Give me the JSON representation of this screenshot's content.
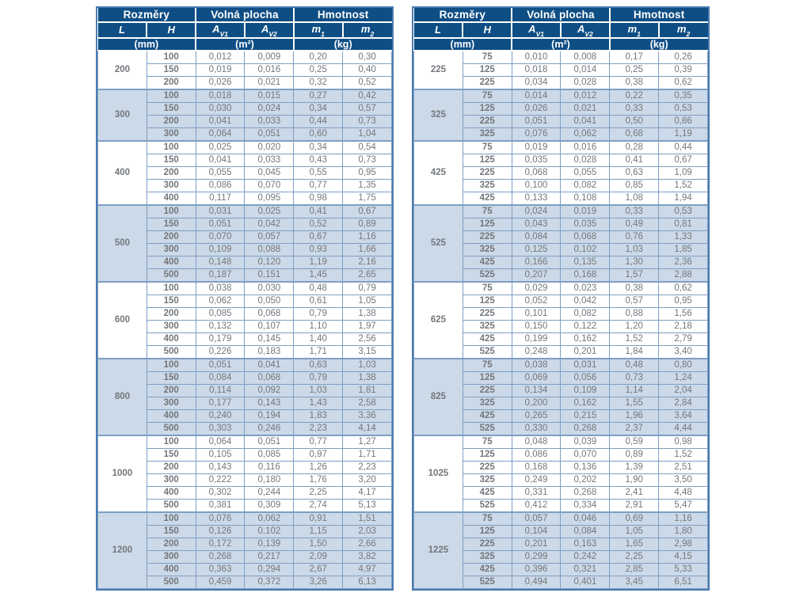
{
  "theme": {
    "header-bg": "#0f4e85",
    "stripe": "#ccd9e8",
    "line": "#7d9fc3",
    "border-strong": "#4a7ab0",
    "text-num": "#73777b",
    "text-bold": "#3c3f43",
    "page-bg": "#ffffff"
  },
  "header": {
    "groups": [
      {
        "label": "Rozměry",
        "span": 2
      },
      {
        "label": "Volná plocha",
        "span": 2
      },
      {
        "label": "Hmotnost",
        "span": 2
      }
    ],
    "columns": [
      {
        "base": "L"
      },
      {
        "base": "H"
      },
      {
        "base": "A",
        "sub": "V1"
      },
      {
        "base": "A",
        "sub": "V2"
      },
      {
        "base": "m",
        "sub": "1"
      },
      {
        "base": "m",
        "sub": "2"
      }
    ],
    "units": [
      {
        "label": "(mm)",
        "span": 2
      },
      {
        "label": "(m²)",
        "span": 2
      },
      {
        "label": "(kg)",
        "span": 2
      }
    ]
  },
  "tables": [
    {
      "name": "dimensions-table-left",
      "groups": [
        {
          "l": "200",
          "rows": [
            [
              "100",
              "0,012",
              "0,009",
              "0,20",
              "0,30"
            ],
            [
              "150",
              "0,019",
              "0,016",
              "0,25",
              "0,40"
            ],
            [
              "200",
              "0,026",
              "0,021",
              "0,32",
              "0,52"
            ]
          ]
        },
        {
          "l": "300",
          "rows": [
            [
              "100",
              "0,018",
              "0,015",
              "0,27",
              "0,42"
            ],
            [
              "150",
              "0,030",
              "0,024",
              "0,34",
              "0,57"
            ],
            [
              "200",
              "0,041",
              "0,033",
              "0,44",
              "0,73"
            ],
            [
              "300",
              "0,064",
              "0,051",
              "0,60",
              "1,04"
            ]
          ]
        },
        {
          "l": "400",
          "rows": [
            [
              "100",
              "0,025",
              "0,020",
              "0,34",
              "0,54"
            ],
            [
              "150",
              "0,041",
              "0,033",
              "0,43",
              "0,73"
            ],
            [
              "200",
              "0,055",
              "0,045",
              "0,55",
              "0,95"
            ],
            [
              "300",
              "0,086",
              "0,070",
              "0,77",
              "1,35"
            ],
            [
              "400",
              "0,117",
              "0,095",
              "0,98",
              "1,75"
            ]
          ]
        },
        {
          "l": "500",
          "rows": [
            [
              "100",
              "0,031",
              "0,025",
              "0,41",
              "0,67"
            ],
            [
              "150",
              "0,051",
              "0,042",
              "0,52",
              "0,89"
            ],
            [
              "200",
              "0,070",
              "0,057",
              "0,67",
              "1,16"
            ],
            [
              "300",
              "0,109",
              "0,088",
              "0,93",
              "1,66"
            ],
            [
              "400",
              "0,148",
              "0,120",
              "1,19",
              "2,16"
            ],
            [
              "500",
              "0,187",
              "0,151",
              "1,45",
              "2,65"
            ]
          ]
        },
        {
          "l": "600",
          "rows": [
            [
              "100",
              "0,038",
              "0,030",
              "0,48",
              "0,79"
            ],
            [
              "150",
              "0,062",
              "0,050",
              "0,61",
              "1,05"
            ],
            [
              "200",
              "0,085",
              "0,068",
              "0,79",
              "1,38"
            ],
            [
              "300",
              "0,132",
              "0,107",
              "1,10",
              "1,97"
            ],
            [
              "400",
              "0,179",
              "0,145",
              "1,40",
              "2,56"
            ],
            [
              "500",
              "0,226",
              "0,183",
              "1,71",
              "3,15"
            ]
          ]
        },
        {
          "l": "800",
          "rows": [
            [
              "100",
              "0,051",
              "0,041",
              "0,63",
              "1,03"
            ],
            [
              "150",
              "0,084",
              "0,068",
              "0,79",
              "1,38"
            ],
            [
              "200",
              "0,114",
              "0,092",
              "1,03",
              "1,81"
            ],
            [
              "300",
              "0,177",
              "0,143",
              "1,43",
              "2,58"
            ],
            [
              "400",
              "0,240",
              "0,194",
              "1,83",
              "3,36"
            ],
            [
              "500",
              "0,303",
              "0,246",
              "2,23",
              "4,14"
            ]
          ]
        },
        {
          "l": "1000",
          "rows": [
            [
              "100",
              "0,064",
              "0,051",
              "0,77",
              "1,27"
            ],
            [
              "150",
              "0,105",
              "0,085",
              "0,97",
              "1,71"
            ],
            [
              "200",
              "0,143",
              "0,116",
              "1,26",
              "2,23"
            ],
            [
              "300",
              "0,222",
              "0,180",
              "1,76",
              "3,20"
            ],
            [
              "400",
              "0,302",
              "0,244",
              "2,25",
              "4,17"
            ],
            [
              "500",
              "0,381",
              "0,309",
              "2,74",
              "5,13"
            ]
          ]
        },
        {
          "l": "1200",
          "rows": [
            [
              "100",
              "0,076",
              "0,062",
              "0,91",
              "1,51"
            ],
            [
              "150",
              "0,126",
              "0,102",
              "1,15",
              "2,03"
            ],
            [
              "200",
              "0,172",
              "0,139",
              "1,50",
              "2,66"
            ],
            [
              "300",
              "0,268",
              "0,217",
              "2,09",
              "3,82"
            ],
            [
              "400",
              "0,363",
              "0,294",
              "2,67",
              "4,97"
            ],
            [
              "500",
              "0,459",
              "0,372",
              "3,26",
              "6,13"
            ]
          ]
        }
      ]
    },
    {
      "name": "dimensions-table-right",
      "groups": [
        {
          "l": "225",
          "rows": [
            [
              "75",
              "0,010",
              "0,008",
              "0,17",
              "0,26"
            ],
            [
              "125",
              "0,018",
              "0,014",
              "0,25",
              "0,39"
            ],
            [
              "225",
              "0,034",
              "0,028",
              "0,38",
              "0,62"
            ]
          ]
        },
        {
          "l": "325",
          "rows": [
            [
              "75",
              "0,014",
              "0,012",
              "0,22",
              "0,35"
            ],
            [
              "125",
              "0,026",
              "0,021",
              "0,33",
              "0,53"
            ],
            [
              "225",
              "0,051",
              "0,041",
              "0,50",
              "0,86"
            ],
            [
              "325",
              "0,076",
              "0,062",
              "0,68",
              "1,19"
            ]
          ]
        },
        {
          "l": "425",
          "rows": [
            [
              "75",
              "0,019",
              "0,016",
              "0,28",
              "0,44"
            ],
            [
              "125",
              "0,035",
              "0,028",
              "0,41",
              "0,67"
            ],
            [
              "225",
              "0,068",
              "0,055",
              "0,63",
              "1,09"
            ],
            [
              "325",
              "0,100",
              "0,082",
              "0,85",
              "1,52"
            ],
            [
              "425",
              "0,133",
              "0,108",
              "1,08",
              "1,94"
            ]
          ]
        },
        {
          "l": "525",
          "rows": [
            [
              "75",
              "0,024",
              "0,019",
              "0,33",
              "0,53"
            ],
            [
              "125",
              "0,043",
              "0,035",
              "0,49",
              "0,81"
            ],
            [
              "225",
              "0,084",
              "0,068",
              "0,76",
              "1,33"
            ],
            [
              "325",
              "0,125",
              "0,102",
              "1,03",
              "1,85"
            ],
            [
              "425",
              "0,166",
              "0,135",
              "1,30",
              "2,36"
            ],
            [
              "525",
              "0,207",
              "0,168",
              "1,57",
              "2,88"
            ]
          ]
        },
        {
          "l": "625",
          "rows": [
            [
              "75",
              "0,029",
              "0,023",
              "0,38",
              "0,62"
            ],
            [
              "125",
              "0,052",
              "0,042",
              "0,57",
              "0,95"
            ],
            [
              "225",
              "0,101",
              "0,082",
              "0,88",
              "1,56"
            ],
            [
              "325",
              "0,150",
              "0,122",
              "1,20",
              "2,18"
            ],
            [
              "425",
              "0,199",
              "0,162",
              "1,52",
              "2,79"
            ],
            [
              "525",
              "0,248",
              "0,201",
              "1,84",
              "3,40"
            ]
          ]
        },
        {
          "l": "825",
          "rows": [
            [
              "75",
              "0,038",
              "0,031",
              "0,48",
              "0,80"
            ],
            [
              "125",
              "0,069",
              "0,056",
              "0,73",
              "1,24"
            ],
            [
              "225",
              "0,134",
              "0,109",
              "1,14",
              "2,04"
            ],
            [
              "325",
              "0,200",
              "0,162",
              "1,55",
              "2,84"
            ],
            [
              "425",
              "0,265",
              "0,215",
              "1,96",
              "3,64"
            ],
            [
              "525",
              "0,330",
              "0,268",
              "2,37",
              "4,44"
            ]
          ]
        },
        {
          "l": "1025",
          "rows": [
            [
              "75",
              "0,048",
              "0,039",
              "0,59",
              "0,98"
            ],
            [
              "125",
              "0,086",
              "0,070",
              "0,89",
              "1,52"
            ],
            [
              "225",
              "0,168",
              "0,136",
              "1,39",
              "2,51"
            ],
            [
              "325",
              "0,249",
              "0,202",
              "1,90",
              "3,50"
            ],
            [
              "425",
              "0,331",
              "0,268",
              "2,41",
              "4,48"
            ],
            [
              "525",
              "0,412",
              "0,334",
              "2,91",
              "5,47"
            ]
          ]
        },
        {
          "l": "1225",
          "rows": [
            [
              "75",
              "0,057",
              "0,046",
              "0,69",
              "1,16"
            ],
            [
              "125",
              "0,104",
              "0,084",
              "1,05",
              "1,80"
            ],
            [
              "225",
              "0,201",
              "0,163",
              "1,65",
              "2,98"
            ],
            [
              "325",
              "0,299",
              "0,242",
              "2,25",
              "4,15"
            ],
            [
              "425",
              "0,396",
              "0,321",
              "2,85",
              "5,33"
            ],
            [
              "525",
              "0,494",
              "0,401",
              "3,45",
              "6,51"
            ]
          ]
        }
      ]
    }
  ]
}
